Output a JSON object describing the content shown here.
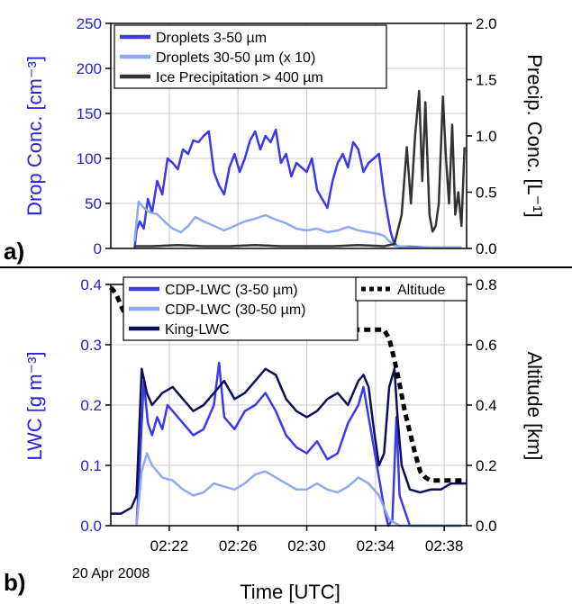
{
  "colors": {
    "droplets": "#3a3ae6",
    "droplets_large": "#8fa8f4",
    "ice": "#333333",
    "cdp": "#3a3ae6",
    "cdp_large": "#8fa8f4",
    "king": "#0d0d5a",
    "altitude": "#000000",
    "left_axis": "#2424d6",
    "right_axis": "#000000"
  },
  "panel_labels": {
    "a": "a)",
    "b": "b)"
  },
  "date_label": "20 Apr 2008",
  "chart_data": [
    {
      "type": "line",
      "panel": "a",
      "xlabel": "",
      "ylabel": "Drop Conc. [cm⁻³]",
      "y2label": "Precip. Conc. [L⁻¹]",
      "xlim": [
        2.31,
        2.655
      ],
      "ylim": [
        0,
        250
      ],
      "y2lim": [
        0,
        2.0
      ],
      "yticks": [
        "0",
        "50",
        "100",
        "150",
        "200",
        "250"
      ],
      "y2ticks": [
        "0.0",
        "0.5",
        "1.0",
        "1.5",
        "2.0"
      ],
      "grid": true,
      "legend_position": "top-left",
      "series": [
        {
          "name": "Droplets 3-50 µm",
          "axis": "left",
          "x": [
            2.333,
            2.335,
            2.338,
            2.342,
            2.346,
            2.35,
            2.355,
            2.36,
            2.365,
            2.37,
            2.375,
            2.38,
            2.385,
            2.39,
            2.395,
            2.4,
            2.405,
            2.41,
            2.415,
            2.42,
            2.425,
            2.43,
            2.435,
            2.44,
            2.445,
            2.45,
            2.455,
            2.46,
            2.465,
            2.47,
            2.475,
            2.48,
            2.485,
            2.49,
            2.495,
            2.5,
            2.505,
            2.51,
            2.515,
            2.52,
            2.525,
            2.53,
            2.535,
            2.54,
            2.545,
            2.55,
            2.555,
            2.56,
            2.565,
            2.57,
            2.575,
            2.578,
            2.581,
            2.584,
            2.587,
            2.59,
            2.6,
            2.62,
            2.64,
            2.65
          ],
          "values": [
            0,
            20,
            30,
            22,
            55,
            40,
            75,
            60,
            100,
            95,
            88,
            110,
            105,
            120,
            118,
            125,
            130,
            85,
            70,
            60,
            90,
            105,
            85,
            100,
            120,
            130,
            110,
            125,
            118,
            132,
            95,
            105,
            80,
            95,
            90,
            85,
            100,
            65,
            55,
            45,
            75,
            95,
            105,
            90,
            118,
            110,
            85,
            95,
            100,
            105,
            60,
            40,
            20,
            8,
            3,
            2,
            2,
            1,
            1,
            1
          ]
        },
        {
          "name": "Droplets 30-50 µm (x 10)",
          "axis": "left",
          "x": [
            2.333,
            2.337,
            2.342,
            2.348,
            2.355,
            2.362,
            2.37,
            2.378,
            2.385,
            2.392,
            2.4,
            2.41,
            2.42,
            2.43,
            2.44,
            2.45,
            2.46,
            2.47,
            2.48,
            2.49,
            2.5,
            2.51,
            2.52,
            2.53,
            2.54,
            2.55,
            2.56,
            2.57,
            2.575,
            2.58,
            2.585,
            2.59,
            2.6,
            2.62,
            2.64,
            2.65
          ],
          "values": [
            8,
            52,
            45,
            40,
            38,
            30,
            22,
            18,
            25,
            35,
            30,
            25,
            20,
            25,
            30,
            33,
            37,
            32,
            28,
            22,
            20,
            22,
            18,
            20,
            24,
            20,
            18,
            16,
            14,
            8,
            3,
            2,
            1,
            1,
            1,
            1
          ]
        },
        {
          "name": "Ice Precipitation > 400 µm",
          "axis": "right",
          "x": [
            2.333,
            2.35,
            2.375,
            2.4,
            2.425,
            2.45,
            2.475,
            2.5,
            2.525,
            2.55,
            2.575,
            2.585,
            2.592,
            2.597,
            2.601,
            2.605,
            2.609,
            2.612,
            2.615,
            2.619,
            2.622,
            2.625,
            2.628,
            2.632,
            2.635,
            2.638,
            2.641,
            2.644,
            2.647,
            2.65,
            2.653
          ],
          "values": [
            0.02,
            0.02,
            0.03,
            0.02,
            0.02,
            0.03,
            0.02,
            0.02,
            0.02,
            0.03,
            0.02,
            0.04,
            0.3,
            0.9,
            0.4,
            1.0,
            1.4,
            0.6,
            1.3,
            0.3,
            0.15,
            0.2,
            0.4,
            1.35,
            0.8,
            0.4,
            1.1,
            0.3,
            0.5,
            0.2,
            0.9
          ]
        }
      ]
    },
    {
      "type": "line",
      "panel": "b",
      "xlabel": "Time [UTC]",
      "ylabel": "LWC [g m⁻³]",
      "y2label": "Altitude [km]",
      "xlim": [
        2.31,
        2.655
      ],
      "ylim": [
        0,
        0.4
      ],
      "y2lim": [
        0,
        0.8
      ],
      "xticks": [
        "02:22",
        "02:26",
        "02:30",
        "02:34",
        "02:38"
      ],
      "xtick_values": [
        2.3667,
        2.4333,
        2.5,
        2.5667,
        2.6333
      ],
      "yticks": [
        "0.0",
        "0.1",
        "0.2",
        "0.3",
        "0.4"
      ],
      "y2ticks": [
        "0.0",
        "0.2",
        "0.4",
        "0.6",
        "0.8"
      ],
      "grid": true,
      "legend_position": "top-left",
      "series": [
        {
          "name": "CDP-LWC (3-50 µm)",
          "axis": "left",
          "x": [
            2.335,
            2.338,
            2.342,
            2.346,
            2.35,
            2.355,
            2.36,
            2.365,
            2.37,
            2.38,
            2.39,
            2.4,
            2.41,
            2.415,
            2.42,
            2.43,
            2.44,
            2.45,
            2.46,
            2.47,
            2.48,
            2.49,
            2.5,
            2.51,
            2.52,
            2.53,
            2.54,
            2.55,
            2.555,
            2.56,
            2.565,
            2.57,
            2.575,
            2.579,
            2.583,
            2.587,
            2.59,
            2.6,
            2.62,
            2.64,
            2.65
          ],
          "values": [
            0,
            0.1,
            0.24,
            0.17,
            0.15,
            0.18,
            0.16,
            0.2,
            0.19,
            0.17,
            0.15,
            0.16,
            0.2,
            0.27,
            0.18,
            0.16,
            0.19,
            0.2,
            0.22,
            0.19,
            0.15,
            0.13,
            0.12,
            0.14,
            0.11,
            0.12,
            0.17,
            0.2,
            0.23,
            0.18,
            0.13,
            0.08,
            0.03,
            0.0,
            0.01,
            0.18,
            0.05,
            0.0,
            0.0,
            0.0,
            0.0
          ]
        },
        {
          "name": "CDP-LWC (30-50 µm)",
          "axis": "left",
          "x": [
            2.335,
            2.34,
            2.345,
            2.35,
            2.36,
            2.37,
            2.38,
            2.39,
            2.4,
            2.41,
            2.42,
            2.43,
            2.44,
            2.45,
            2.46,
            2.47,
            2.48,
            2.49,
            2.5,
            2.51,
            2.52,
            2.53,
            2.54,
            2.55,
            2.56,
            2.57,
            2.575,
            2.58,
            2.585,
            2.59,
            2.6,
            2.62,
            2.64,
            2.65
          ],
          "values": [
            0,
            0.09,
            0.12,
            0.1,
            0.08,
            0.075,
            0.06,
            0.05,
            0.055,
            0.07,
            0.065,
            0.06,
            0.07,
            0.085,
            0.09,
            0.08,
            0.07,
            0.06,
            0.06,
            0.07,
            0.06,
            0.055,
            0.065,
            0.08,
            0.07,
            0.05,
            0.03,
            0.01,
            0.005,
            0.0,
            0.0,
            0.0,
            0.0,
            0.0
          ]
        },
        {
          "name": "King-LWC",
          "axis": "left",
          "x": [
            2.31,
            2.32,
            2.33,
            2.335,
            2.34,
            2.345,
            2.35,
            2.36,
            2.37,
            2.38,
            2.39,
            2.4,
            2.41,
            2.42,
            2.43,
            2.44,
            2.45,
            2.46,
            2.47,
            2.48,
            2.49,
            2.5,
            2.51,
            2.52,
            2.53,
            2.54,
            2.55,
            2.555,
            2.56,
            2.565,
            2.57,
            2.575,
            2.58,
            2.585,
            2.588,
            2.592,
            2.6,
            2.61,
            2.62,
            2.63,
            2.64,
            2.65,
            2.655
          ],
          "values": [
            0.02,
            0.02,
            0.03,
            0.05,
            0.26,
            0.22,
            0.2,
            0.22,
            0.23,
            0.21,
            0.19,
            0.2,
            0.22,
            0.24,
            0.21,
            0.22,
            0.24,
            0.26,
            0.25,
            0.21,
            0.19,
            0.18,
            0.19,
            0.21,
            0.22,
            0.2,
            0.24,
            0.25,
            0.23,
            0.16,
            0.1,
            0.12,
            0.23,
            0.26,
            0.18,
            0.1,
            0.06,
            0.055,
            0.06,
            0.06,
            0.07,
            0.07,
            0.07
          ]
        },
        {
          "name": "Altitude",
          "axis": "right",
          "style": "dashed",
          "x": [
            2.31,
            2.315,
            2.32,
            2.325,
            2.33,
            2.335,
            2.345,
            2.36,
            2.38,
            2.4,
            2.44,
            2.48,
            2.52,
            2.56,
            2.575,
            2.58,
            2.585,
            2.59,
            2.595,
            2.6,
            2.605,
            2.61,
            2.615,
            2.62,
            2.63,
            2.64,
            2.65,
            2.655
          ],
          "values": [
            0.79,
            0.77,
            0.73,
            0.69,
            0.66,
            0.64,
            0.63,
            0.64,
            0.64,
            0.65,
            0.65,
            0.65,
            0.65,
            0.65,
            0.65,
            0.62,
            0.55,
            0.47,
            0.38,
            0.31,
            0.24,
            0.18,
            0.16,
            0.15,
            0.15,
            0.15,
            0.15,
            0.15
          ]
        }
      ]
    }
  ]
}
